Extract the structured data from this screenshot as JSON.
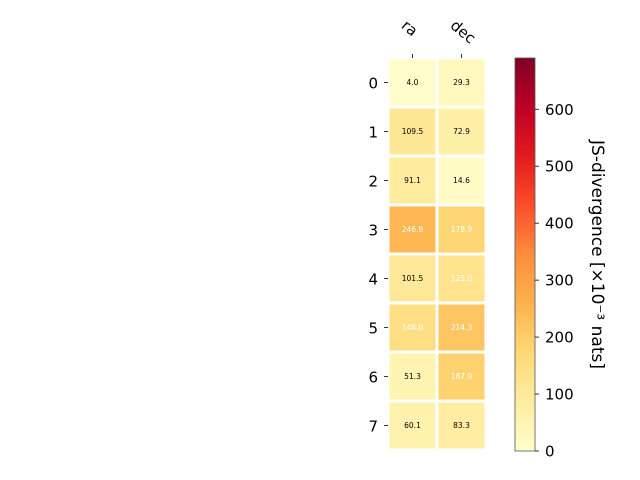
{
  "chart_data": {
    "type": "heatmap",
    "columns": [
      "ra",
      "dec"
    ],
    "rows": [
      "0",
      "1",
      "2",
      "3",
      "4",
      "5",
      "6",
      "7"
    ],
    "values": [
      [
        4.0,
        29.3
      ],
      [
        109.5,
        72.9
      ],
      [
        91.1,
        14.6
      ],
      [
        246.8,
        178.9
      ],
      [
        101.5,
        125.0
      ],
      [
        146.0,
        214.3
      ],
      [
        51.3,
        187.9
      ],
      [
        60.1,
        83.3
      ]
    ],
    "cell_labels": [
      [
        "4.0",
        "29.3"
      ],
      [
        "109.5",
        "72.9"
      ],
      [
        "91.1",
        "14.6"
      ],
      [
        "246.8",
        "178.9"
      ],
      [
        "101.5",
        "125.0"
      ],
      [
        "146.0",
        "214.3"
      ],
      [
        "51.3",
        "187.9"
      ],
      [
        "60.1",
        "83.3"
      ]
    ],
    "label_colors": [
      [
        "black",
        "black"
      ],
      [
        "black",
        "black"
      ],
      [
        "black",
        "black"
      ],
      [
        "white",
        "white"
      ],
      [
        "black",
        "white"
      ],
      [
        "white",
        "white"
      ],
      [
        "black",
        "white"
      ],
      [
        "black",
        "black"
      ]
    ],
    "colormap": "YlOrRd",
    "colorbar": {
      "label": "JS-divergence [×10⁻³ nats]",
      "range": [
        0,
        690
      ],
      "ticks": [
        "0",
        "100",
        "200",
        "300",
        "400",
        "500",
        "600"
      ],
      "tick_values": [
        0,
        100,
        200,
        300,
        400,
        500,
        600
      ]
    }
  }
}
